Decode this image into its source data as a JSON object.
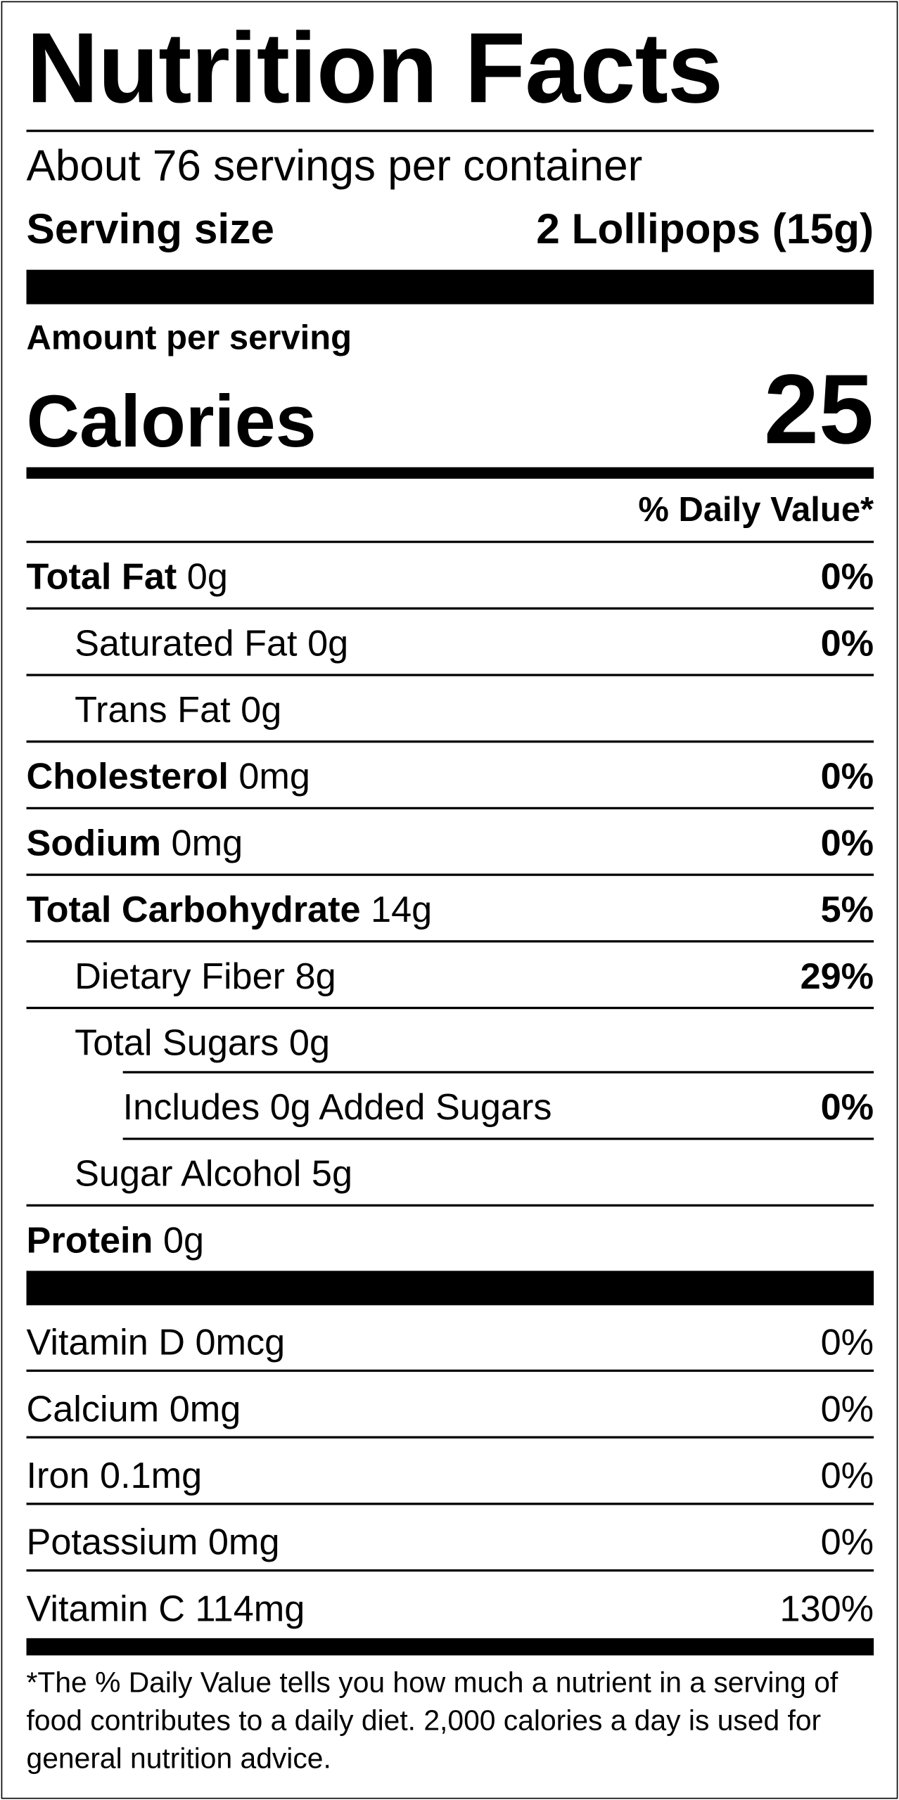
{
  "header": {
    "title": "Nutrition Facts",
    "servings": "About 76 servings per container",
    "serving_size_label": "Serving size",
    "serving_size_value": "2 Lollipops (15g)"
  },
  "calories": {
    "amount_per_serving": "Amount per serving",
    "label": "Calories",
    "value": "25"
  },
  "daily_value_header": "% Daily Value*",
  "nutrients": [
    {
      "name": "Total Fat",
      "amount": "0g",
      "dv": "0%"
    },
    {
      "name": "Saturated Fat",
      "amount": "0g",
      "dv": "0%"
    },
    {
      "name": "Trans Fat",
      "amount": "0g"
    },
    {
      "name": "Cholesterol",
      "amount": "0mg",
      "dv": "0%"
    },
    {
      "name": "Sodium",
      "amount": "0mg",
      "dv": "0%"
    },
    {
      "name": "Total Carbohydrate",
      "amount": "14g",
      "dv": "5%"
    },
    {
      "name": "Dietary Fiber",
      "amount": "8g",
      "dv": "29%"
    },
    {
      "name": "Total Sugars",
      "amount": "0g"
    },
    {
      "name": "Includes 0g Added Sugars",
      "dv": "0%"
    },
    {
      "name": "Sugar Alcohol",
      "amount": "5g"
    },
    {
      "name": "Protein",
      "amount": "0g"
    }
  ],
  "vitamins": [
    {
      "name": "Vitamin D",
      "amount": "0mcg",
      "dv": "0%"
    },
    {
      "name": "Calcium",
      "amount": "0mg",
      "dv": "0%"
    },
    {
      "name": "Iron",
      "amount": "0.1mg",
      "dv": "0%"
    },
    {
      "name": "Potassium",
      "amount": "0mg",
      "dv": "0%"
    },
    {
      "name": "Vitamin C",
      "amount": "114mg",
      "dv": "130%"
    }
  ],
  "footnote": "*The % Daily Value tells you how much a nutrient in a serving of food contributes to a daily diet. 2,000 calories a day is used for general nutrition advice."
}
